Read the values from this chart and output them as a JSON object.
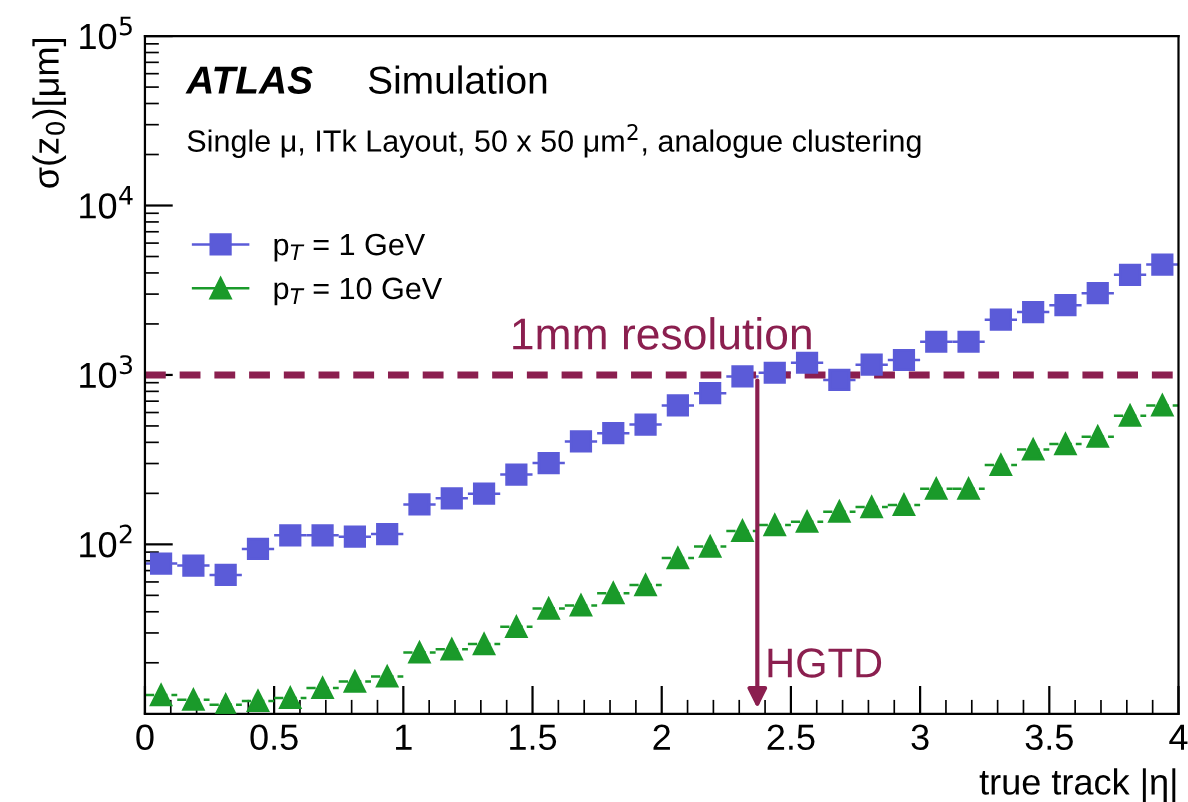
{
  "chart_data": {
    "type": "scatter",
    "title": "ATLAS",
    "subtitle": "Simulation",
    "annotations": [
      "Single μ, ITk Layout, 50 x 50 μm$^{2}$, analogue clustering",
      {
        "text": "HGTD",
        "x": 2.37,
        "y": 1000
      }
    ],
    "xlabel": "true track |η|",
    "ylabel": "σ(z$_{0}$)[μm]",
    "x": [
      0.0625,
      0.1875,
      0.3125,
      0.4375,
      0.5625,
      0.6875,
      0.8125,
      0.9375,
      1.0625,
      1.1875,
      1.3125,
      1.4375,
      1.5625,
      1.6875,
      1.8125,
      1.9375,
      2.0625,
      2.1875,
      2.3125,
      2.4375,
      2.5625,
      2.6875,
      2.8125,
      2.9375,
      3.0625,
      3.1875,
      3.3125,
      3.4375,
      3.5625,
      3.6875,
      3.8125,
      3.9375
    ],
    "series": [
      {
        "name": "p$_{T}$ = 1 GeV",
        "color": "#5b5bd8",
        "marker": "square",
        "line_style": "solid",
        "xerrors": [
          0.0625,
          0.0625,
          0.0625,
          0.0625,
          0.0625,
          0.0625,
          0.0625,
          0.0625,
          0.0625,
          0.0625,
          0.0625,
          0.0625,
          0.0625,
          0.0625,
          0.0625,
          0.0625,
          0.0625,
          0.0625,
          0.0625,
          0.0625,
          0.0625,
          0.0625,
          0.0625,
          0.0625,
          0.0625,
          0.0625,
          0.0625,
          0.0625,
          0.0625,
          0.0625,
          0.0625,
          0.0625
        ],
        "values": [
          77,
          75,
          66,
          94,
          113,
          113,
          111,
          115,
          172,
          187,
          199,
          258,
          302,
          405,
          453,
          509,
          661,
          780,
          980,
          1030,
          1180,
          935,
          1150,
          1225,
          1570,
          1570,
          2120,
          2350,
          2580,
          3040,
          3900,
          4480
        ]
      },
      {
        "name": "p$_{T}$ = 10 GeV",
        "color": "#1a9a2a",
        "marker": "triangle",
        "line_style": "dashed",
        "xerrors": [
          0.0625,
          0.0625,
          0.0625,
          0.0625,
          0.0625,
          0.0625,
          0.0625,
          0.0625,
          0.0625,
          0.0625,
          0.0625,
          0.0625,
          0.0625,
          0.0625,
          0.0625,
          0.0625,
          0.0625,
          0.0625,
          0.0625,
          0.0625,
          0.0625,
          0.0625,
          0.0625,
          0.0625,
          0.0625,
          0.0625,
          0.0625,
          0.0625,
          0.0625,
          0.0625,
          0.0625,
          0.0625
        ],
        "values": [
          12.9,
          12.1,
          11.3,
          11.9,
          12.4,
          14.2,
          15.5,
          16.6,
          23,
          24,
          25.8,
          32.6,
          41.8,
          43.6,
          51.5,
          57.5,
          83,
          97,
          120,
          130,
          136,
          156,
          166,
          171,
          213,
          213,
          294,
          363,
          391,
          432,
          575,
          661
        ]
      }
    ],
    "log": "y",
    "xlim": [
      0,
      4
    ],
    "xticks": [
      0,
      0.5,
      1,
      1.5,
      2,
      2.5,
      3,
      3.5,
      4
    ],
    "ylim": [
      10,
      100000
    ],
    "yticks": [
      {
        "value": 100,
        "label": "10$^{2}$"
      },
      {
        "value": 1000,
        "label": "10$^{3}$"
      },
      {
        "value": 10000,
        "label": "10$^{4}$"
      },
      {
        "value": 100000,
        "label": "10$^{5}$"
      }
    ],
    "ref_lines": [
      {
        "axis": "y",
        "value": 1000,
        "label": "1mm resolution",
        "color": "#8b1f4f",
        "line_style": "dashed"
      }
    ],
    "grid": false,
    "legend": "top left"
  }
}
